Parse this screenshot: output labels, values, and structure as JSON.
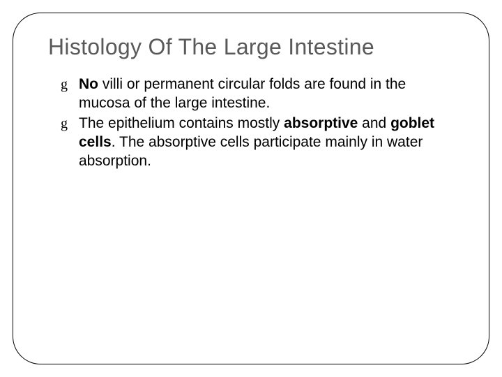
{
  "slide": {
    "title": "Histology Of The Large Intestine",
    "bullets": [
      {
        "runs": [
          {
            "text": "No",
            "bold": true
          },
          {
            "text": " villi or permanent circular folds are found in the mucosa of the large intestine.",
            "bold": false
          }
        ]
      },
      {
        "runs": [
          {
            "text": "The epithelium contains mostly ",
            "bold": false
          },
          {
            "text": "absorptive",
            "bold": true
          },
          {
            "text": " and ",
            "bold": false
          },
          {
            "text": "goblet cells",
            "bold": true
          },
          {
            "text": ".  The absorptive cells participate mainly in water absorption.",
            "bold": false
          }
        ]
      }
    ],
    "bullet_glyph": "g"
  },
  "style": {
    "title_color": "#595959",
    "title_fontsize": 32,
    "body_fontsize": 21,
    "border_color": "#000000",
    "border_radius": 40,
    "background": "#ffffff"
  }
}
